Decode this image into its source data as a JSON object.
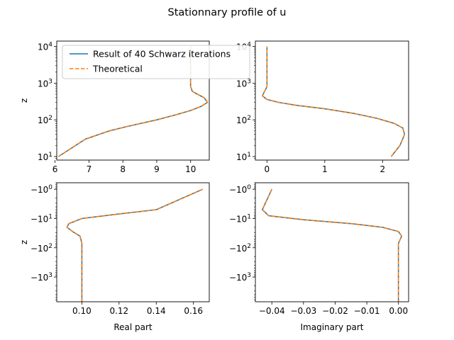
{
  "figure": {
    "title": "Stationnary profile of u"
  },
  "legend": {
    "entries": [
      {
        "label": "Result of 40 Schwarz iterations",
        "color": "#1f77b4",
        "dash": "solid"
      },
      {
        "label": "Theoretical",
        "color": "#ff7f0e",
        "dash": "dashed"
      }
    ],
    "placement": "top-left of first panel"
  },
  "colors": {
    "series_1": "#1f77b4",
    "series_2": "#ff7f0e"
  },
  "chart_data": [
    {
      "type": "line",
      "panel": "top-left",
      "xlabel": "",
      "ylabel": "z",
      "xscale": "linear",
      "yscale": "log",
      "xlim": [
        6.05,
        10.55
      ],
      "ylim": [
        8,
        14000
      ],
      "xticks": [
        6,
        7,
        8,
        9,
        10
      ],
      "xtick_labels": [
        "6",
        "7",
        "8",
        "9",
        "10"
      ],
      "yticks": [
        10,
        100,
        1000,
        10000
      ],
      "ytick_labels": [
        "10^1",
        "10^2",
        "10^3",
        "10^4"
      ],
      "series": [
        {
          "name": "Result of 40 Schwarz iterations",
          "x": [
            6.1,
            6.9,
            7.6,
            8.1,
            9.0,
            9.6,
            10.0,
            10.3,
            10.5,
            10.4,
            10.2,
            10.05,
            10.0,
            10.0,
            10.0
          ],
          "y": [
            10,
            30,
            50,
            65,
            100,
            140,
            180,
            230,
            300,
            400,
            500,
            600,
            800,
            2000,
            10000
          ]
        },
        {
          "name": "Theoretical",
          "x": [
            6.1,
            6.9,
            7.6,
            8.1,
            9.0,
            9.6,
            10.0,
            10.3,
            10.5,
            10.4,
            10.2,
            10.05,
            10.0,
            10.0,
            10.0
          ],
          "y": [
            10,
            30,
            50,
            65,
            100,
            140,
            180,
            230,
            300,
            400,
            500,
            600,
            800,
            2000,
            10000
          ]
        }
      ]
    },
    {
      "type": "line",
      "panel": "top-right",
      "xlabel": "",
      "ylabel": "",
      "xscale": "linear",
      "yscale": "log",
      "xlim": [
        -0.2,
        2.45
      ],
      "ylim": [
        8,
        14000
      ],
      "xticks": [
        0,
        1,
        2
      ],
      "xtick_labels": [
        "0",
        "1",
        "2"
      ],
      "yticks": [
        10,
        100,
        1000,
        10000
      ],
      "ytick_labels": [
        "10^1",
        "10^2",
        "10^3",
        "10^4"
      ],
      "series": [
        {
          "name": "Result of 40 Schwarz iterations",
          "x": [
            2.15,
            2.3,
            2.38,
            2.35,
            2.2,
            1.9,
            1.5,
            1.0,
            0.5,
            0.2,
            0.0,
            -0.08,
            -0.04,
            0.0,
            0.0,
            0.0
          ],
          "y": [
            10,
            20,
            40,
            60,
            80,
            110,
            150,
            200,
            250,
            300,
            360,
            450,
            600,
            800,
            2000,
            10000
          ]
        },
        {
          "name": "Theoretical",
          "x": [
            2.15,
            2.3,
            2.38,
            2.35,
            2.2,
            1.9,
            1.5,
            1.0,
            0.5,
            0.2,
            0.0,
            -0.08,
            -0.04,
            0.0,
            0.0,
            0.0
          ],
          "y": [
            10,
            20,
            40,
            60,
            80,
            110,
            150,
            200,
            250,
            300,
            360,
            450,
            600,
            800,
            2000,
            10000
          ]
        }
      ]
    },
    {
      "type": "line",
      "panel": "bottom-left",
      "xlabel": "Real part",
      "ylabel": "z",
      "xscale": "linear",
      "yscale": "symlog",
      "xlim": [
        0.0865,
        0.1685
      ],
      "ylim": [
        -7000,
        -0.6
      ],
      "xticks": [
        0.1,
        0.12,
        0.14,
        0.16
      ],
      "xtick_labels": [
        "0.10",
        "0.12",
        "0.14",
        "0.16"
      ],
      "yticks": [
        -1,
        -10,
        -100,
        -1000
      ],
      "ytick_labels": [
        "-10^0",
        "-10^1",
        "-10^2",
        "-10^3"
      ],
      "series": [
        {
          "name": "Result of 40 Schwarz iterations",
          "x": [
            0.165,
            0.14,
            0.12,
            0.1,
            0.093,
            0.092,
            0.095,
            0.099,
            0.1,
            0.1,
            0.1
          ],
          "y": [
            -1,
            -5,
            -7,
            -10,
            -15,
            -20,
            -28,
            -40,
            -70,
            -500,
            -7000
          ]
        },
        {
          "name": "Theoretical",
          "x": [
            0.165,
            0.14,
            0.12,
            0.1,
            0.093,
            0.092,
            0.095,
            0.099,
            0.1,
            0.1,
            0.1
          ],
          "y": [
            -1,
            -5,
            -7,
            -10,
            -15,
            -20,
            -28,
            -40,
            -70,
            -500,
            -7000
          ]
        }
      ]
    },
    {
      "type": "line",
      "panel": "bottom-right",
      "xlabel": "Imaginary part",
      "ylabel": "",
      "xscale": "linear",
      "yscale": "symlog",
      "xlim": [
        -0.0452,
        0.0032
      ],
      "ylim": [
        -7000,
        -0.6
      ],
      "xticks": [
        -0.04,
        -0.03,
        -0.02,
        -0.01,
        0.0
      ],
      "xtick_labels": [
        "−0.04",
        "−0.03",
        "−0.02",
        "−0.01",
        "0.00"
      ],
      "yticks": [
        -1,
        -10,
        -100,
        -1000
      ],
      "ytick_labels": [
        "-10^0",
        "-10^1",
        "-10^2",
        "-10^3"
      ],
      "series": [
        {
          "name": "Result of 40 Schwarz iterations",
          "x": [
            -0.04,
            -0.043,
            -0.041,
            -0.03,
            -0.015,
            -0.005,
            0.0,
            0.001,
            0.0,
            0.0,
            0.0
          ],
          "y": [
            -1,
            -5,
            -8,
            -11,
            -15,
            -20,
            -28,
            -40,
            -70,
            -500,
            -7000
          ]
        },
        {
          "name": "Theoretical",
          "x": [
            -0.04,
            -0.043,
            -0.041,
            -0.03,
            -0.015,
            -0.005,
            0.0,
            0.001,
            0.0,
            0.0,
            0.0
          ],
          "y": [
            -1,
            -5,
            -8,
            -11,
            -15,
            -20,
            -28,
            -40,
            -70,
            -500,
            -7000
          ]
        }
      ]
    }
  ]
}
